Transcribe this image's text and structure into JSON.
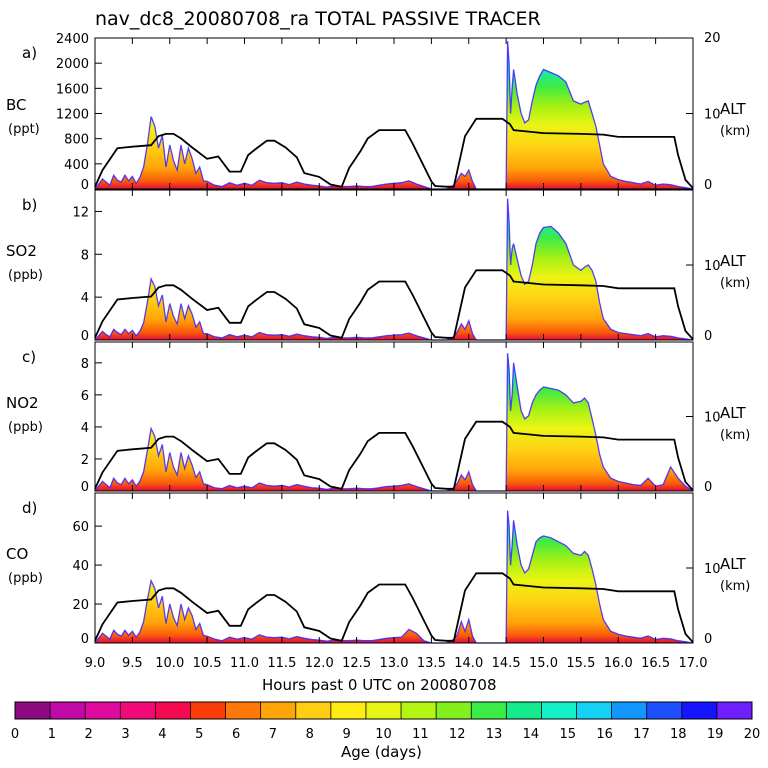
{
  "title": "nav_dc8_20080708_ra TOTAL PASSIVE TRACER",
  "chart_data": {
    "type": "area",
    "title": "nav_dc8_20080708_ra TOTAL PASSIVE TRACER",
    "xlabel": "Hours past 0 UTC on 20080708",
    "xlim": [
      9.0,
      17.0
    ],
    "xticks": [
      "9.0",
      "9.5",
      "10.0",
      "10.5",
      "11.0",
      "11.5",
      "12.0",
      "12.5",
      "13.0",
      "13.5",
      "14.0",
      "14.5",
      "15.0",
      "15.5",
      "16.0",
      "16.5",
      "17.0"
    ],
    "altitude_axis": {
      "label": "ALT",
      "unit": "(km)",
      "ylim": [
        0,
        20
      ],
      "ticks": [
        "0",
        "10",
        "20"
      ],
      "flight_track": {
        "x": [
          9.0,
          9.1,
          9.3,
          9.5,
          9.75,
          9.85,
          9.95,
          10.05,
          10.15,
          10.3,
          10.5,
          10.65,
          10.8,
          10.95,
          11.05,
          11.15,
          11.3,
          11.4,
          11.55,
          11.7,
          11.8,
          12.0,
          12.15,
          12.3,
          12.4,
          12.55,
          12.65,
          12.8,
          12.9,
          13.15,
          13.25,
          13.4,
          13.5,
          13.55,
          13.7,
          13.8,
          13.95,
          14.1,
          14.3,
          14.45,
          14.55,
          14.6,
          14.8,
          15.0,
          15.5,
          15.8,
          16.0,
          16.2,
          16.5,
          16.75,
          16.8,
          16.9,
          17.0
        ],
        "alt": [
          0.3,
          2.5,
          5.4,
          5.6,
          5.8,
          7.0,
          7.3,
          7.3,
          6.7,
          5.5,
          4.0,
          4.3,
          2.3,
          2.3,
          4.5,
          5.3,
          6.4,
          6.4,
          5.5,
          4.2,
          2.1,
          1.6,
          0.6,
          0.3,
          2.8,
          5.0,
          6.7,
          7.8,
          7.8,
          7.8,
          6.0,
          3.0,
          1.0,
          0.4,
          0.3,
          0.3,
          7.0,
          9.3,
          9.3,
          9.3,
          8.6,
          7.8,
          7.6,
          7.4,
          7.3,
          7.2,
          6.9,
          6.9,
          6.9,
          6.9,
          4.5,
          1.2,
          0.1
        ]
      }
    },
    "colorbar": {
      "label": "Age (days)",
      "ticks": [
        "0",
        "1",
        "2",
        "3",
        "4",
        "5",
        "6",
        "7",
        "8",
        "9",
        "10",
        "11",
        "12",
        "13",
        "14",
        "15",
        "16",
        "17",
        "18",
        "19",
        "20"
      ],
      "colors": [
        "#8b0a82",
        "#bf0aa8",
        "#e10a9f",
        "#f20a78",
        "#f50a50",
        "#fa3c0a",
        "#ff780a",
        "#ffa50a",
        "#ffcd14",
        "#ffec14",
        "#e6f514",
        "#b4f514",
        "#82f01e",
        "#3ceb46",
        "#14eb8c",
        "#14f0c8",
        "#14d2f5",
        "#1496ff",
        "#1e50ff",
        "#1414ff",
        "#6e1eff"
      ]
    },
    "tracer_envelope": {
      "x": [
        9.0,
        9.05,
        9.1,
        9.15,
        9.2,
        9.25,
        9.3,
        9.35,
        9.4,
        9.45,
        9.5,
        9.55,
        9.6,
        9.65,
        9.7,
        9.75,
        9.8,
        9.85,
        9.9,
        9.95,
        10.0,
        10.05,
        10.1,
        10.15,
        10.2,
        10.25,
        10.3,
        10.35,
        10.4,
        10.45,
        10.5,
        10.6,
        10.7,
        10.8,
        10.9,
        11.0,
        11.1,
        11.2,
        11.3,
        11.4,
        11.5,
        11.6,
        11.7,
        11.8,
        11.9,
        12.0,
        12.1,
        12.2,
        12.3,
        12.4,
        12.5,
        12.6,
        12.7,
        12.8,
        12.9,
        13.0,
        13.1,
        13.2,
        13.3,
        13.4,
        13.5,
        13.6,
        13.7,
        13.8,
        13.85,
        13.9,
        13.95,
        14.0,
        14.05,
        14.1,
        14.5,
        14.52,
        14.54,
        14.56,
        14.58,
        14.6,
        14.65,
        14.7,
        14.75,
        14.8,
        14.85,
        14.9,
        14.95,
        15.0,
        15.1,
        15.2,
        15.3,
        15.4,
        15.5,
        15.55,
        15.6,
        15.65,
        15.7,
        15.75,
        15.8,
        15.9,
        16.0,
        16.1,
        16.2,
        16.3,
        16.4,
        16.5,
        16.6,
        16.7,
        16.8,
        16.9,
        17.0
      ]
    },
    "panels": [
      {
        "letter": "a)",
        "species": "BC",
        "unit": "(ppt)",
        "ylim": [
          0,
          2400
        ],
        "yticks": [
          "0",
          "400",
          "800",
          "1200",
          "1600",
          "2000",
          "2400"
        ],
        "envelope": [
          0,
          80,
          160,
          110,
          60,
          220,
          140,
          110,
          220,
          130,
          200,
          90,
          180,
          350,
          700,
          1150,
          1000,
          650,
          850,
          350,
          700,
          450,
          300,
          700,
          400,
          650,
          480,
          250,
          350,
          130,
          120,
          60,
          40,
          100,
          60,
          90,
          60,
          140,
          100,
          90,
          100,
          70,
          110,
          80,
          60,
          50,
          30,
          50,
          40,
          40,
          50,
          40,
          40,
          60,
          80,
          90,
          100,
          130,
          80,
          40,
          0,
          0,
          0,
          60,
          150,
          250,
          200,
          300,
          120,
          0,
          0,
          2350,
          2000,
          1200,
          1600,
          1900,
          1500,
          1200,
          1050,
          1100,
          1400,
          1650,
          1800,
          1900,
          1850,
          1800,
          1700,
          1400,
          1350,
          1380,
          1400,
          1200,
          1000,
          700,
          400,
          200,
          150,
          120,
          100,
          80,
          120,
          60,
          80,
          70,
          40,
          20,
          0
        ]
      },
      {
        "letter": "b)",
        "species": "SO2",
        "unit": "(ppb)",
        "ylim": [
          0,
          14
        ],
        "yticks": [
          "0",
          "4",
          "8",
          "12"
        ],
        "envelope": [
          0,
          0.4,
          0.8,
          0.5,
          0.3,
          1.0,
          0.7,
          0.5,
          1.0,
          0.6,
          0.9,
          0.4,
          0.8,
          1.6,
          3.5,
          5.7,
          5.0,
          3.2,
          4.2,
          1.7,
          3.4,
          2.2,
          1.5,
          3.4,
          2.0,
          3.2,
          2.4,
          1.2,
          1.7,
          0.6,
          0.6,
          0.3,
          0.2,
          0.5,
          0.3,
          0.45,
          0.3,
          0.7,
          0.5,
          0.45,
          0.5,
          0.35,
          0.55,
          0.4,
          0.3,
          0.25,
          0.15,
          0.25,
          0.2,
          0.2,
          0.25,
          0.2,
          0.2,
          0.3,
          0.4,
          0.45,
          0.5,
          0.65,
          0.4,
          0.2,
          0,
          0,
          0,
          0.3,
          0.8,
          1.5,
          1.0,
          1.8,
          0.6,
          0,
          0,
          13.2,
          11.0,
          7.0,
          8.5,
          9.0,
          7.5,
          6.0,
          5.2,
          5.5,
          7.0,
          9.0,
          10.0,
          10.5,
          10.6,
          10.0,
          9.0,
          7.0,
          6.5,
          6.8,
          7.0,
          6.5,
          5.5,
          3.5,
          2.0,
          1.0,
          0.7,
          0.6,
          0.5,
          0.4,
          0.6,
          0.3,
          0.4,
          0.35,
          0.2,
          0.1,
          0
        ]
      },
      {
        "letter": "c)",
        "species": "NO2",
        "unit": "(ppb)",
        "ylim": [
          0,
          9.3
        ],
        "yticks": [
          "0",
          "2",
          "4",
          "6",
          "8"
        ],
        "envelope": [
          0,
          0.3,
          0.6,
          0.4,
          0.2,
          0.8,
          0.5,
          0.4,
          0.8,
          0.45,
          0.7,
          0.3,
          0.6,
          1.2,
          2.5,
          3.9,
          3.4,
          2.2,
          2.9,
          1.2,
          2.4,
          1.5,
          1.0,
          2.4,
          1.4,
          2.2,
          1.6,
          0.85,
          1.2,
          0.45,
          0.4,
          0.2,
          0.15,
          0.35,
          0.2,
          0.3,
          0.2,
          0.5,
          0.35,
          0.3,
          0.35,
          0.25,
          0.4,
          0.3,
          0.2,
          0.18,
          0.1,
          0.18,
          0.14,
          0.14,
          0.18,
          0.14,
          0.14,
          0.2,
          0.28,
          0.3,
          0.35,
          0.45,
          0.28,
          0.14,
          0,
          0,
          0,
          0.2,
          0.5,
          1.0,
          0.7,
          1.2,
          0.4,
          0,
          0,
          8.6,
          7.6,
          5.0,
          6.0,
          8.0,
          6.5,
          5.0,
          4.5,
          4.7,
          5.5,
          6.0,
          6.3,
          6.5,
          6.4,
          6.3,
          6.0,
          5.5,
          5.6,
          5.8,
          5.5,
          4.5,
          3.5,
          2.3,
          1.5,
          0.8,
          0.6,
          0.5,
          0.4,
          0.35,
          0.8,
          0.3,
          0.4,
          1.5,
          0.8,
          0.3,
          0
        ]
      },
      {
        "letter": "d)",
        "species": "CO",
        "unit": "(ppb)",
        "ylim": [
          0,
          77
        ],
        "yticks": [
          "0",
          "20",
          "40",
          "60"
        ],
        "envelope": [
          0,
          2.5,
          5.0,
          3.5,
          2.0,
          6.5,
          4.5,
          3.5,
          6.5,
          4.0,
          6.0,
          3.0,
          5.5,
          11,
          22,
          32,
          28,
          18,
          24,
          10,
          20,
          13,
          9,
          20,
          12,
          18,
          14,
          7,
          10,
          4,
          3.5,
          2,
          1.2,
          3,
          2,
          2.7,
          2,
          4.2,
          3,
          2.7,
          3,
          2.1,
          3.3,
          2.4,
          1.8,
          1.5,
          0.9,
          1.5,
          1.2,
          1.2,
          1.5,
          1.2,
          1.2,
          1.8,
          2.4,
          2.7,
          3,
          7,
          5,
          1.2,
          0,
          0,
          0,
          1.8,
          4.5,
          11,
          6,
          12,
          3.6,
          0,
          0,
          68,
          60,
          40,
          50,
          63,
          50,
          40,
          36,
          38,
          45,
          52,
          54,
          55,
          54,
          52,
          50,
          46,
          45,
          47,
          45,
          38,
          30,
          20,
          12,
          6,
          4.5,
          3.6,
          3,
          2.4,
          3.6,
          1.8,
          2.4,
          2.1,
          1.2,
          0.6,
          0
        ]
      }
    ]
  }
}
